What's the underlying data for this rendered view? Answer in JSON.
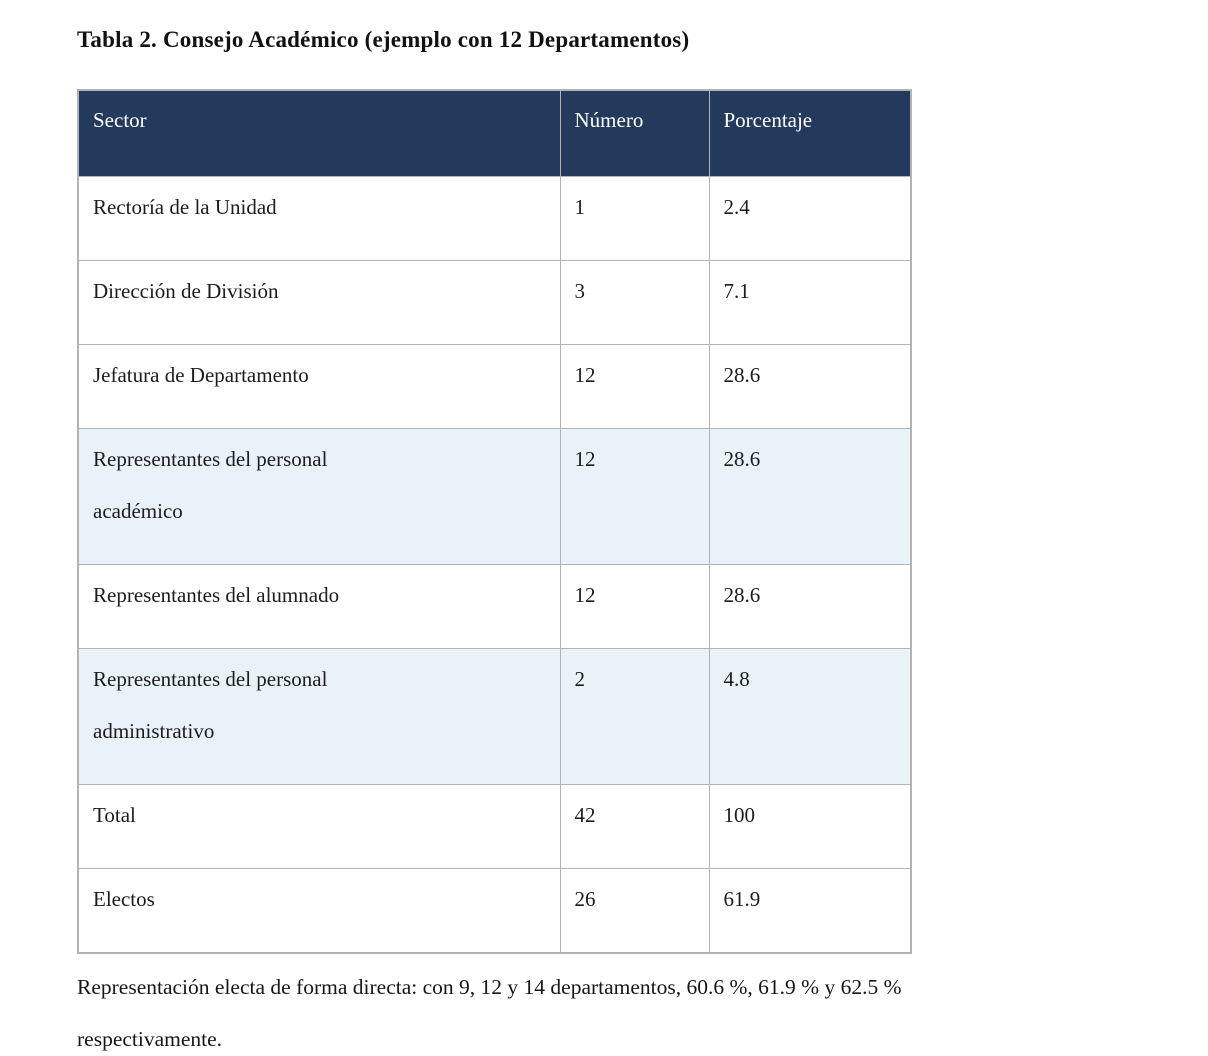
{
  "title": "Tabla 2. Consejo Académico (ejemplo con 12 Departamentos)",
  "table": {
    "columns": [
      "Sector",
      "Número",
      "Porcentaje"
    ],
    "rows": [
      {
        "sector": "Rectoría de la Unidad",
        "numero": "1",
        "porcentaje": "2.4"
      },
      {
        "sector": "Dirección de División",
        "numero": "3",
        "porcentaje": "7.1"
      },
      {
        "sector": "Jefatura de Departamento",
        "numero": "12",
        "porcentaje": "28.6"
      },
      {
        "sector": "Representantes del personal\nacadémico",
        "numero": "12",
        "porcentaje": "28.6"
      },
      {
        "sector": "Representantes del alumnado",
        "numero": "12",
        "porcentaje": "28.6"
      },
      {
        "sector": "Representantes del personal\nadministrativo",
        "numero": "2",
        "porcentaje": "4.8"
      },
      {
        "sector": "Total",
        "numero": "42",
        "porcentaje": "100"
      },
      {
        "sector": "Electos",
        "numero": "26",
        "porcentaje": "61.9"
      }
    ]
  },
  "footnote": "Representación electa de forma directa: con 9, 12 y 14 departamentos, 60.6 %, 61.9 % y 62.5 %\nrespectivamente.",
  "colors": {
    "header_bg": "#233a5c",
    "header_text": "#ffffff",
    "shaded_row_bg": "#e9f1f9",
    "border": "#b3b3b3",
    "text": "#1c1c1c"
  }
}
